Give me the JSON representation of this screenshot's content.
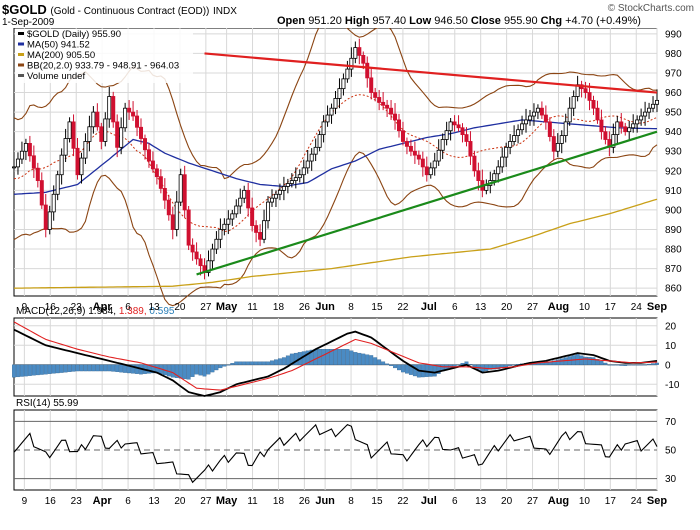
{
  "header": {
    "symbol": "$GOLD",
    "name": "(Gold - Continuous Contract (EOD))",
    "exchange": "INDX",
    "date": "1-Sep-2009",
    "open_label": "Open",
    "open": "951.20",
    "high_label": "High",
    "high": "957.40",
    "low_label": "Low",
    "low": "946.50",
    "close_label": "Close",
    "close": "955.90",
    "chg_label": "Chg",
    "chg": "+4.70 (+0.49%)",
    "copyright": "© StockCharts.com"
  },
  "chart_data": [
    {
      "type": "candlestick",
      "legend": [
        {
          "text": "$GOLD (Daily) 955.90",
          "color": "#000000"
        },
        {
          "text": "MA(50) 941.52",
          "color": "#1f2fa0"
        },
        {
          "text": "MA(200) 905.50",
          "color": "#c9a018"
        },
        {
          "text": "BB(20,2.0) 933.79 - 948.91 - 964.03",
          "color": "#8b4513"
        },
        {
          "text": "Volume undef",
          "color": "#555555"
        }
      ],
      "x_tick_labels": [
        "9",
        "16",
        "23",
        "Apr",
        "6",
        "13",
        "20",
        "27",
        "May",
        "11",
        "18",
        "26",
        "Jun",
        "8",
        "15",
        "22",
        "Jul",
        "6",
        "13",
        "20",
        "27",
        "Aug",
        "10",
        "17",
        "24",
        "Sep"
      ],
      "y_ticks": [
        860,
        870,
        880,
        890,
        900,
        910,
        920,
        930,
        940,
        950,
        960,
        970,
        980,
        990
      ],
      "ylim": [
        856,
        993
      ],
      "colors": {
        "up": "#000000",
        "down": "#d01030",
        "ma50": "#1f2fa0",
        "ma200": "#c9a018",
        "bb": "#8b4513",
        "bb_mid": "#cc3311",
        "trend_up": "#1a8a1a",
        "trend_down": "#e02020"
      },
      "anchors": [
        [
          0,
          922
        ],
        [
          3,
          934
        ],
        [
          6,
          915
        ],
        [
          8,
          890
        ],
        [
          10,
          908
        ],
        [
          12,
          928
        ],
        [
          14,
          945
        ],
        [
          16,
          918
        ],
        [
          18,
          935
        ],
        [
          20,
          950
        ],
        [
          22,
          935
        ],
        [
          24,
          958
        ],
        [
          26,
          932
        ],
        [
          28,
          952
        ],
        [
          30,
          948
        ],
        [
          34,
          925
        ],
        [
          36,
          917
        ],
        [
          38,
          905
        ],
        [
          40,
          890
        ],
        [
          42,
          918
        ],
        [
          44,
          882
        ],
        [
          46,
          875
        ],
        [
          48,
          868
        ],
        [
          50,
          880
        ],
        [
          52,
          890
        ],
        [
          55,
          898
        ],
        [
          58,
          910
        ],
        [
          60,
          892
        ],
        [
          62,
          885
        ],
        [
          64,
          904
        ],
        [
          66,
          908
        ],
        [
          68,
          912
        ],
        [
          70,
          915
        ],
        [
          72,
          918
        ],
        [
          74,
          925
        ],
        [
          76,
          932
        ],
        [
          78,
          945
        ],
        [
          80,
          952
        ],
        [
          82,
          962
        ],
        [
          84,
          972
        ],
        [
          86,
          983
        ],
        [
          88,
          975
        ],
        [
          90,
          960
        ],
        [
          92,
          955
        ],
        [
          94,
          952
        ],
        [
          96,
          946
        ],
        [
          98,
          935
        ],
        [
          100,
          930
        ],
        [
          102,
          926
        ],
        [
          104,
          918
        ],
        [
          106,
          925
        ],
        [
          108,
          936
        ],
        [
          110,
          945
        ],
        [
          112,
          942
        ],
        [
          114,
          935
        ],
        [
          116,
          920
        ],
        [
          118,
          910
        ],
        [
          120,
          915
        ],
        [
          122,
          922
        ],
        [
          124,
          932
        ],
        [
          126,
          938
        ],
        [
          128,
          944
        ],
        [
          130,
          948
        ],
        [
          132,
          952
        ],
        [
          134,
          945
        ],
        [
          136,
          930
        ],
        [
          138,
          938
        ],
        [
          140,
          952
        ],
        [
          142,
          964
        ],
        [
          144,
          960
        ],
        [
          146,
          952
        ],
        [
          148,
          940
        ],
        [
          150,
          932
        ],
        [
          152,
          945
        ],
        [
          154,
          940
        ],
        [
          156,
          944
        ],
        [
          158,
          948
        ],
        [
          160,
          952
        ],
        [
          162,
          956
        ]
      ],
      "ma50": [
        [
          0,
          908
        ],
        [
          8,
          909
        ],
        [
          16,
          913
        ],
        [
          24,
          926
        ],
        [
          30,
          936
        ],
        [
          34,
          934
        ],
        [
          38,
          929
        ],
        [
          44,
          924
        ],
        [
          50,
          920
        ],
        [
          56,
          916
        ],
        [
          62,
          913
        ],
        [
          68,
          912
        ],
        [
          74,
          914
        ],
        [
          80,
          921
        ],
        [
          86,
          925
        ],
        [
          92,
          931
        ],
        [
          98,
          934
        ],
        [
          104,
          937
        ],
        [
          110,
          939
        ],
        [
          116,
          942
        ],
        [
          122,
          944
        ],
        [
          128,
          946
        ],
        [
          134,
          945
        ],
        [
          140,
          944
        ],
        [
          146,
          943
        ],
        [
          152,
          942
        ],
        [
          162,
          941.5
        ]
      ],
      "ma200": [
        [
          0,
          860
        ],
        [
          20,
          860.5
        ],
        [
          40,
          861
        ],
        [
          50,
          863
        ],
        [
          60,
          866
        ],
        [
          70,
          868
        ],
        [
          80,
          870
        ],
        [
          90,
          873
        ],
        [
          100,
          876
        ],
        [
          110,
          878
        ],
        [
          120,
          880
        ],
        [
          130,
          886
        ],
        [
          140,
          893
        ],
        [
          150,
          898
        ],
        [
          162,
          905.5
        ]
      ],
      "trend_lines": [
        {
          "from": [
            46,
            867
          ],
          "to": [
            162,
            940
          ],
          "color": "trend_up"
        },
        {
          "from": [
            48,
            980
          ],
          "to": [
            162,
            960
          ],
          "color": "trend_down"
        }
      ]
    },
    {
      "type": "line",
      "label": "MACD(12,26,9) 1.984, 1.389, 0.595",
      "label_parts": [
        "MACD(12,26,9)",
        "1.984,",
        "1.389,",
        "0.595"
      ],
      "y_ticks": [
        20,
        10,
        0,
        -10
      ],
      "ylim": [
        -16,
        24
      ],
      "series": [
        {
          "values": [
            [
              0,
              18
            ],
            [
              8,
              10
            ],
            [
              16,
              6
            ],
            [
              24,
              2
            ],
            [
              30,
              -1
            ],
            [
              36,
              -4
            ],
            [
              40,
              -8
            ],
            [
              44,
              -14
            ],
            [
              48,
              -16
            ],
            [
              52,
              -14
            ],
            [
              56,
              -10
            ],
            [
              60,
              -8
            ],
            [
              64,
              -6
            ],
            [
              68,
              -2
            ],
            [
              72,
              3
            ],
            [
              76,
              8
            ],
            [
              80,
              12
            ],
            [
              84,
              16
            ],
            [
              86,
              17
            ],
            [
              90,
              14
            ],
            [
              94,
              8
            ],
            [
              98,
              2
            ],
            [
              102,
              -3
            ],
            [
              106,
              -4
            ],
            [
              110,
              -2
            ],
            [
              114,
              0
            ],
            [
              118,
              -4
            ],
            [
              122,
              -3
            ],
            [
              126,
              -1
            ],
            [
              130,
              1
            ],
            [
              134,
              2
            ],
            [
              138,
              4
            ],
            [
              142,
              6
            ],
            [
              146,
              5
            ],
            [
              150,
              2
            ],
            [
              154,
              1
            ],
            [
              158,
              1
            ],
            [
              162,
              2.0
            ]
          ],
          "color": "#000000"
        },
        {
          "values": [
            [
              0,
              22
            ],
            [
              8,
              13
            ],
            [
              16,
              8
            ],
            [
              24,
              4
            ],
            [
              32,
              1
            ],
            [
              40,
              -4
            ],
            [
              46,
              -12
            ],
            [
              52,
              -13
            ],
            [
              58,
              -10
            ],
            [
              64,
              -7
            ],
            [
              70,
              -3
            ],
            [
              76,
              3
            ],
            [
              82,
              9
            ],
            [
              86,
              13
            ],
            [
              90,
              11
            ],
            [
              96,
              6
            ],
            [
              102,
              1
            ],
            [
              108,
              -1
            ],
            [
              114,
              -1
            ],
            [
              120,
              -2
            ],
            [
              126,
              -1
            ],
            [
              132,
              1
            ],
            [
              138,
              2
            ],
            [
              144,
              3
            ],
            [
              150,
              2
            ],
            [
              156,
              1
            ],
            [
              162,
              1.4
            ]
          ],
          "color": "#e02020"
        }
      ],
      "histogram_color": "#4a8bc4"
    },
    {
      "type": "line",
      "label": "RSI(14) 55.99",
      "label_parts": [
        "RSI(14)",
        "55.99"
      ],
      "y_ticks": [
        70,
        50,
        30
      ],
      "ylim": [
        22,
        78
      ],
      "series": [
        {
          "values": [
            [
              0,
              52
            ],
            [
              4,
              58
            ],
            [
              8,
              46
            ],
            [
              12,
              55
            ],
            [
              16,
              48
            ],
            [
              20,
              60
            ],
            [
              24,
              52
            ],
            [
              28,
              56
            ],
            [
              32,
              50
            ],
            [
              36,
              44
            ],
            [
              40,
              38
            ],
            [
              44,
              30
            ],
            [
              48,
              34
            ],
            [
              52,
              42
            ],
            [
              56,
              48
            ],
            [
              60,
              40
            ],
            [
              64,
              52
            ],
            [
              68,
              56
            ],
            [
              72,
              60
            ],
            [
              76,
              64
            ],
            [
              80,
              62
            ],
            [
              84,
              66
            ],
            [
              86,
              60
            ],
            [
              90,
              48
            ],
            [
              94,
              52
            ],
            [
              98,
              44
            ],
            [
              102,
              52
            ],
            [
              106,
              58
            ],
            [
              110,
              50
            ],
            [
              114,
              46
            ],
            [
              118,
              42
            ],
            [
              122,
              52
            ],
            [
              126,
              60
            ],
            [
              130,
              56
            ],
            [
              134,
              48
            ],
            [
              138,
              58
            ],
            [
              142,
              62
            ],
            [
              146,
              54
            ],
            [
              150,
              46
            ],
            [
              154,
              56
            ],
            [
              158,
              52
            ],
            [
              162,
              56
            ]
          ],
          "color": "#000000"
        }
      ],
      "reference_lines": [
        70,
        30
      ],
      "midline": 50
    }
  ]
}
